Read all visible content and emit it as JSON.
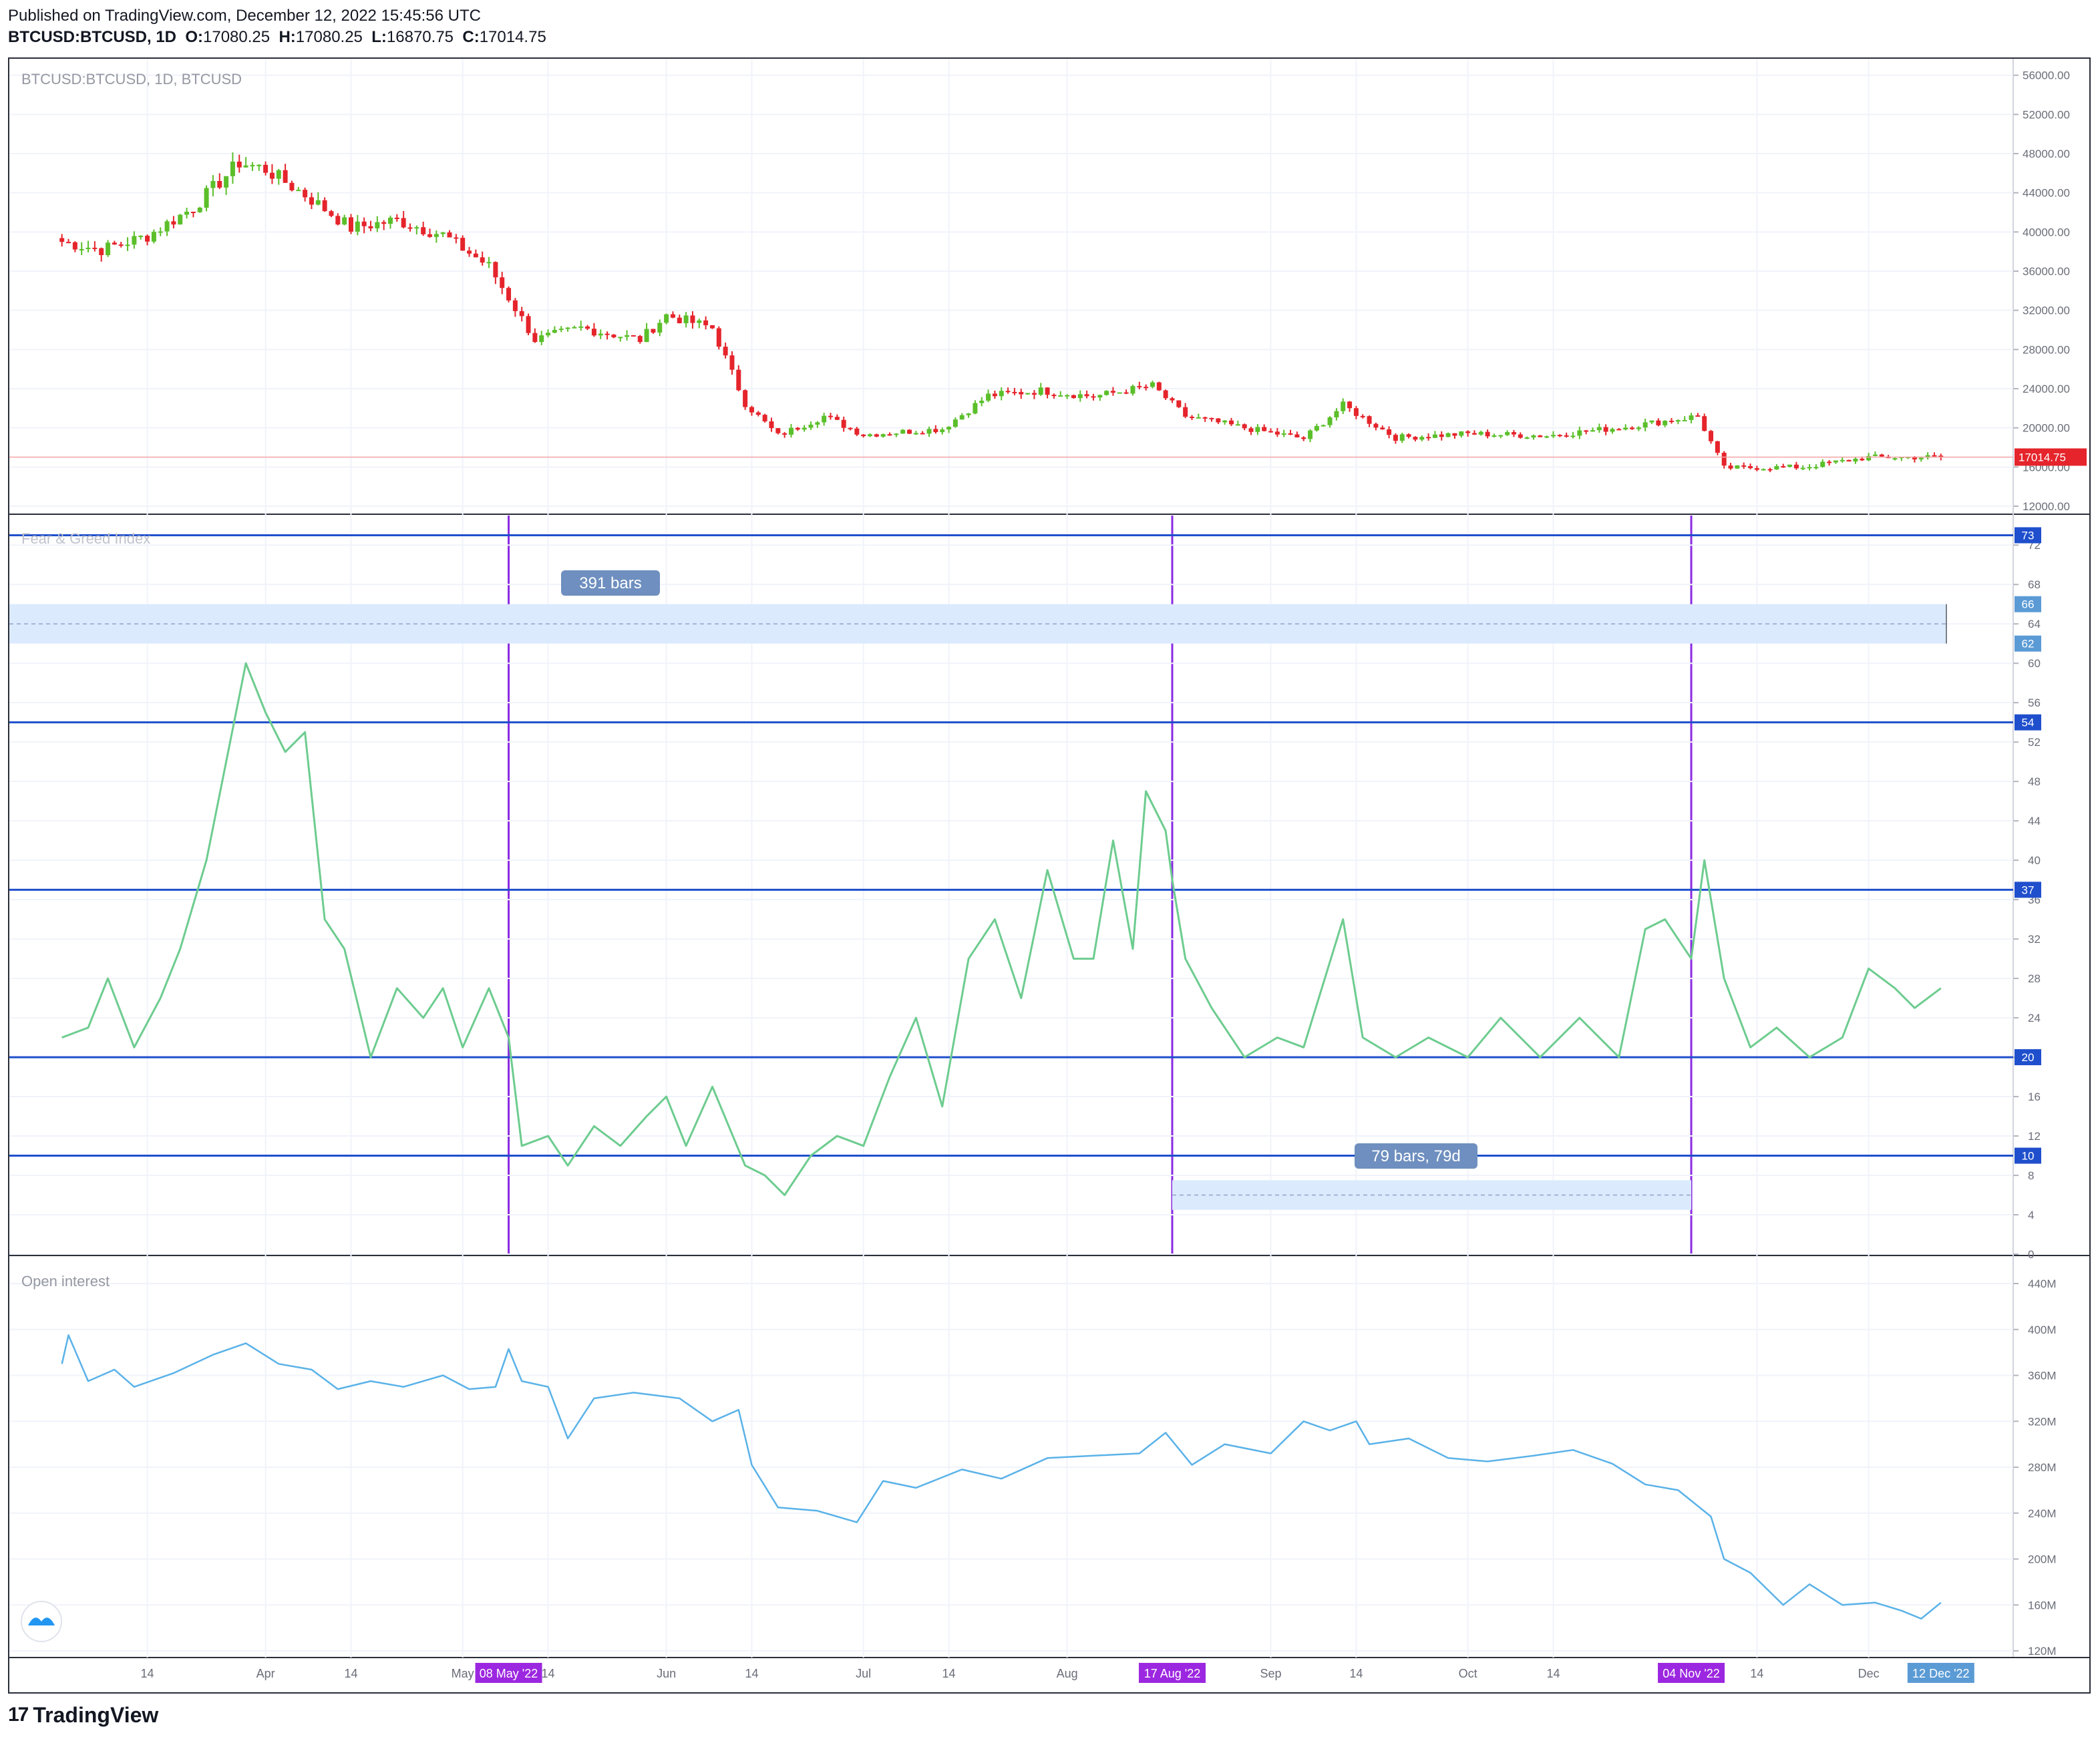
{
  "header": {
    "published": "Published on TradingView.com, December 12, 2022 15:45:56 UTC",
    "symbol": "BTCUSD:BTCUSD, 1D",
    "o_label": "O:",
    "o_value": "17080.25",
    "h_label": "H:",
    "h_value": "17080.25",
    "l_label": "L:",
    "l_value": "16870.75",
    "c_label": "C:",
    "c_value": "17014.75"
  },
  "panes": {
    "price": {
      "title": "BTCUSD:BTCUSD, 1D, BTCUSD",
      "axis_ticks": [
        "56000.00",
        "52000.00",
        "48000.00",
        "44000.00",
        "40000.00",
        "36000.00",
        "32000.00",
        "28000.00",
        "24000.00",
        "20000.00",
        "16000.00",
        "12000.00"
      ],
      "last_price_label": "17014.75"
    },
    "fear_greed": {
      "title": "Fear & Greed Index",
      "axis_ticks": [
        "72",
        "68",
        "64",
        "60",
        "56",
        "52",
        "48",
        "44",
        "40",
        "36",
        "32",
        "28",
        "24",
        "20",
        "16",
        "12",
        "8",
        "4",
        "0"
      ],
      "level_badges": [
        "73",
        "66",
        "62",
        "54",
        "37",
        "20",
        "10"
      ],
      "range_label_1": "391 bars",
      "range_label_2": "79 bars, 79d"
    },
    "open_interest": {
      "title": "Open interest",
      "axis_ticks": [
        "440M",
        "400M",
        "360M",
        "320M",
        "280M",
        "240M",
        "200M",
        "160M",
        "120M"
      ]
    }
  },
  "time_axis": {
    "labels": [
      "14",
      "Apr",
      "14",
      "May",
      "14",
      "Jun",
      "14",
      "Jul",
      "14",
      "Aug",
      "Sep",
      "14",
      "Oct",
      "14",
      "14",
      "Dec"
    ],
    "markers": [
      "08 May '22",
      "17 Aug '22",
      "04 Nov '22",
      "12 Dec '22"
    ]
  },
  "colors": {
    "up": "#5bbf2a",
    "down": "#e5242b",
    "fgi_line": "#6dcc8f",
    "oi_line": "#5ab2e8",
    "hline": "#1f4fcc",
    "vline": "#8a2be2",
    "range_fill": "#dbeafd",
    "last_price": "#e5242b"
  },
  "footer": {
    "brand": "TradingView",
    "brand_mark": "17"
  },
  "chart_data": [
    {
      "type": "candlestick",
      "title": "BTCUSD:BTCUSD, 1D, BTCUSD",
      "ylim": [
        12000,
        57000
      ],
      "x_range": [
        "Mar 2022",
        "Dec 12 2022"
      ],
      "anchors": [
        {
          "date": "2022-03-01",
          "close": 39000
        },
        {
          "date": "2022-03-07",
          "close": 38200
        },
        {
          "date": "2022-03-14",
          "close": 39600
        },
        {
          "date": "2022-03-21",
          "close": 42500
        },
        {
          "date": "2022-03-28",
          "close": 47100
        },
        {
          "date": "2022-04-01",
          "close": 46400
        },
        {
          "date": "2022-04-07",
          "close": 43800
        },
        {
          "date": "2022-04-14",
          "close": 40400
        },
        {
          "date": "2022-04-21",
          "close": 41200
        },
        {
          "date": "2022-04-28",
          "close": 39700
        },
        {
          "date": "2022-05-05",
          "close": 36500
        },
        {
          "date": "2022-05-12",
          "close": 29000
        },
        {
          "date": "2022-05-19",
          "close": 30200
        },
        {
          "date": "2022-05-28",
          "close": 29000
        },
        {
          "date": "2022-06-01",
          "close": 31500
        },
        {
          "date": "2022-06-08",
          "close": 30200
        },
        {
          "date": "2022-06-13",
          "close": 22500
        },
        {
          "date": "2022-06-18",
          "close": 19200
        },
        {
          "date": "2022-06-25",
          "close": 21200
        },
        {
          "date": "2022-07-01",
          "close": 19300
        },
        {
          "date": "2022-07-13",
          "close": 19900
        },
        {
          "date": "2022-07-20",
          "close": 23300
        },
        {
          "date": "2022-07-28",
          "close": 23800
        },
        {
          "date": "2022-08-05",
          "close": 23200
        },
        {
          "date": "2022-08-14",
          "close": 24300
        },
        {
          "date": "2022-08-19",
          "close": 21200
        },
        {
          "date": "2022-08-28",
          "close": 20000
        },
        {
          "date": "2022-09-06",
          "close": 18900
        },
        {
          "date": "2022-09-12",
          "close": 22300
        },
        {
          "date": "2022-09-20",
          "close": 19000
        },
        {
          "date": "2022-10-01",
          "close": 19400
        },
        {
          "date": "2022-10-13",
          "close": 19200
        },
        {
          "date": "2022-10-25",
          "close": 20100
        },
        {
          "date": "2022-11-05",
          "close": 21200
        },
        {
          "date": "2022-11-09",
          "close": 15900
        },
        {
          "date": "2022-11-21",
          "close": 16000
        },
        {
          "date": "2022-12-01",
          "close": 17000
        },
        {
          "date": "2022-12-12",
          "close": 17014.75
        }
      ],
      "last": {
        "open": 17080.25,
        "high": 17080.25,
        "low": 16870.75,
        "close": 17014.75
      }
    },
    {
      "type": "line",
      "title": "Fear & Greed Index",
      "ylim": [
        0,
        75
      ],
      "horizontal_levels": [
        73,
        54,
        37,
        20,
        10
      ],
      "shaded_band": [
        62,
        66
      ],
      "vertical_markers": [
        "2022-05-08",
        "2022-08-17",
        "2022-11-04"
      ],
      "points": [
        {
          "date": "2022-03-01",
          "value": 22
        },
        {
          "date": "2022-03-05",
          "value": 23
        },
        {
          "date": "2022-03-08",
          "value": 28
        },
        {
          "date": "2022-03-12",
          "value": 21
        },
        {
          "date": "2022-03-16",
          "value": 26
        },
        {
          "date": "2022-03-19",
          "value": 31
        },
        {
          "date": "2022-03-23",
          "value": 40
        },
        {
          "date": "2022-03-26",
          "value": 50
        },
        {
          "date": "2022-03-29",
          "value": 60
        },
        {
          "date": "2022-04-01",
          "value": 55
        },
        {
          "date": "2022-04-04",
          "value": 51
        },
        {
          "date": "2022-04-07",
          "value": 53
        },
        {
          "date": "2022-04-10",
          "value": 34
        },
        {
          "date": "2022-04-13",
          "value": 31
        },
        {
          "date": "2022-04-17",
          "value": 20
        },
        {
          "date": "2022-04-21",
          "value": 27
        },
        {
          "date": "2022-04-25",
          "value": 24
        },
        {
          "date": "2022-04-28",
          "value": 27
        },
        {
          "date": "2022-05-01",
          "value": 21
        },
        {
          "date": "2022-05-05",
          "value": 27
        },
        {
          "date": "2022-05-08",
          "value": 22
        },
        {
          "date": "2022-05-10",
          "value": 11
        },
        {
          "date": "2022-05-14",
          "value": 12
        },
        {
          "date": "2022-05-17",
          "value": 9
        },
        {
          "date": "2022-05-21",
          "value": 13
        },
        {
          "date": "2022-05-25",
          "value": 11
        },
        {
          "date": "2022-05-29",
          "value": 14
        },
        {
          "date": "2022-06-01",
          "value": 16
        },
        {
          "date": "2022-06-04",
          "value": 11
        },
        {
          "date": "2022-06-08",
          "value": 17
        },
        {
          "date": "2022-06-13",
          "value": 9
        },
        {
          "date": "2022-06-16",
          "value": 8
        },
        {
          "date": "2022-06-19",
          "value": 6
        },
        {
          "date": "2022-06-23",
          "value": 10
        },
        {
          "date": "2022-06-27",
          "value": 12
        },
        {
          "date": "2022-07-01",
          "value": 11
        },
        {
          "date": "2022-07-05",
          "value": 18
        },
        {
          "date": "2022-07-09",
          "value": 24
        },
        {
          "date": "2022-07-13",
          "value": 15
        },
        {
          "date": "2022-07-17",
          "value": 30
        },
        {
          "date": "2022-07-21",
          "value": 34
        },
        {
          "date": "2022-07-25",
          "value": 26
        },
        {
          "date": "2022-07-29",
          "value": 39
        },
        {
          "date": "2022-08-02",
          "value": 30
        },
        {
          "date": "2022-08-05",
          "value": 30
        },
        {
          "date": "2022-08-08",
          "value": 42
        },
        {
          "date": "2022-08-11",
          "value": 31
        },
        {
          "date": "2022-08-13",
          "value": 47
        },
        {
          "date": "2022-08-16",
          "value": 43
        },
        {
          "date": "2022-08-17",
          "value": 38
        },
        {
          "date": "2022-08-19",
          "value": 30
        },
        {
          "date": "2022-08-23",
          "value": 25
        },
        {
          "date": "2022-08-28",
          "value": 20
        },
        {
          "date": "2022-09-02",
          "value": 22
        },
        {
          "date": "2022-09-06",
          "value": 21
        },
        {
          "date": "2022-09-12",
          "value": 34
        },
        {
          "date": "2022-09-15",
          "value": 22
        },
        {
          "date": "2022-09-20",
          "value": 20
        },
        {
          "date": "2022-09-25",
          "value": 22
        },
        {
          "date": "2022-10-01",
          "value": 20
        },
        {
          "date": "2022-10-06",
          "value": 24
        },
        {
          "date": "2022-10-12",
          "value": 20
        },
        {
          "date": "2022-10-18",
          "value": 24
        },
        {
          "date": "2022-10-24",
          "value": 20
        },
        {
          "date": "2022-10-28",
          "value": 33
        },
        {
          "date": "2022-10-31",
          "value": 34
        },
        {
          "date": "2022-11-04",
          "value": 30
        },
        {
          "date": "2022-11-06",
          "value": 40
        },
        {
          "date": "2022-11-09",
          "value": 28
        },
        {
          "date": "2022-11-13",
          "value": 21
        },
        {
          "date": "2022-11-17",
          "value": 23
        },
        {
          "date": "2022-11-22",
          "value": 20
        },
        {
          "date": "2022-11-27",
          "value": 22
        },
        {
          "date": "2022-12-01",
          "value": 29
        },
        {
          "date": "2022-12-05",
          "value": 27
        },
        {
          "date": "2022-12-08",
          "value": 25
        },
        {
          "date": "2022-12-12",
          "value": 27
        }
      ]
    },
    {
      "type": "line",
      "title": "Open interest",
      "ylim": [
        120,
        440
      ],
      "y_unit": "M",
      "points": [
        {
          "date": "2022-03-01",
          "value": 370
        },
        {
          "date": "2022-03-02",
          "value": 395
        },
        {
          "date": "2022-03-05",
          "value": 355
        },
        {
          "date": "2022-03-09",
          "value": 365
        },
        {
          "date": "2022-03-12",
          "value": 350
        },
        {
          "date": "2022-03-18",
          "value": 362
        },
        {
          "date": "2022-03-24",
          "value": 378
        },
        {
          "date": "2022-03-29",
          "value": 388
        },
        {
          "date": "2022-04-03",
          "value": 370
        },
        {
          "date": "2022-04-08",
          "value": 365
        },
        {
          "date": "2022-04-12",
          "value": 348
        },
        {
          "date": "2022-04-17",
          "value": 355
        },
        {
          "date": "2022-04-22",
          "value": 350
        },
        {
          "date": "2022-04-28",
          "value": 360
        },
        {
          "date": "2022-05-02",
          "value": 348
        },
        {
          "date": "2022-05-06",
          "value": 350
        },
        {
          "date": "2022-05-08",
          "value": 383
        },
        {
          "date": "2022-05-10",
          "value": 355
        },
        {
          "date": "2022-05-14",
          "value": 350
        },
        {
          "date": "2022-05-17",
          "value": 305
        },
        {
          "date": "2022-05-21",
          "value": 340
        },
        {
          "date": "2022-05-27",
          "value": 345
        },
        {
          "date": "2022-06-03",
          "value": 340
        },
        {
          "date": "2022-06-08",
          "value": 320
        },
        {
          "date": "2022-06-12",
          "value": 330
        },
        {
          "date": "2022-06-14",
          "value": 282
        },
        {
          "date": "2022-06-18",
          "value": 245
        },
        {
          "date": "2022-06-24",
          "value": 242
        },
        {
          "date": "2022-06-30",
          "value": 232
        },
        {
          "date": "2022-07-04",
          "value": 268
        },
        {
          "date": "2022-07-09",
          "value": 262
        },
        {
          "date": "2022-07-16",
          "value": 278
        },
        {
          "date": "2022-07-22",
          "value": 270
        },
        {
          "date": "2022-07-29",
          "value": 288
        },
        {
          "date": "2022-08-05",
          "value": 290
        },
        {
          "date": "2022-08-12",
          "value": 292
        },
        {
          "date": "2022-08-16",
          "value": 310
        },
        {
          "date": "2022-08-20",
          "value": 282
        },
        {
          "date": "2022-08-25",
          "value": 300
        },
        {
          "date": "2022-09-01",
          "value": 292
        },
        {
          "date": "2022-09-06",
          "value": 320
        },
        {
          "date": "2022-09-10",
          "value": 312
        },
        {
          "date": "2022-09-14",
          "value": 320
        },
        {
          "date": "2022-09-16",
          "value": 300
        },
        {
          "date": "2022-09-22",
          "value": 305
        },
        {
          "date": "2022-09-28",
          "value": 288
        },
        {
          "date": "2022-10-04",
          "value": 285
        },
        {
          "date": "2022-10-11",
          "value": 290
        },
        {
          "date": "2022-10-17",
          "value": 295
        },
        {
          "date": "2022-10-23",
          "value": 283
        },
        {
          "date": "2022-10-28",
          "value": 265
        },
        {
          "date": "2022-11-02",
          "value": 260
        },
        {
          "date": "2022-11-07",
          "value": 237
        },
        {
          "date": "2022-11-09",
          "value": 200
        },
        {
          "date": "2022-11-13",
          "value": 188
        },
        {
          "date": "2022-11-18",
          "value": 160
        },
        {
          "date": "2022-11-22",
          "value": 178
        },
        {
          "date": "2022-11-27",
          "value": 160
        },
        {
          "date": "2022-12-02",
          "value": 162
        },
        {
          "date": "2022-12-06",
          "value": 155
        },
        {
          "date": "2022-12-09",
          "value": 148
        },
        {
          "date": "2022-12-12",
          "value": 162
        }
      ]
    }
  ]
}
